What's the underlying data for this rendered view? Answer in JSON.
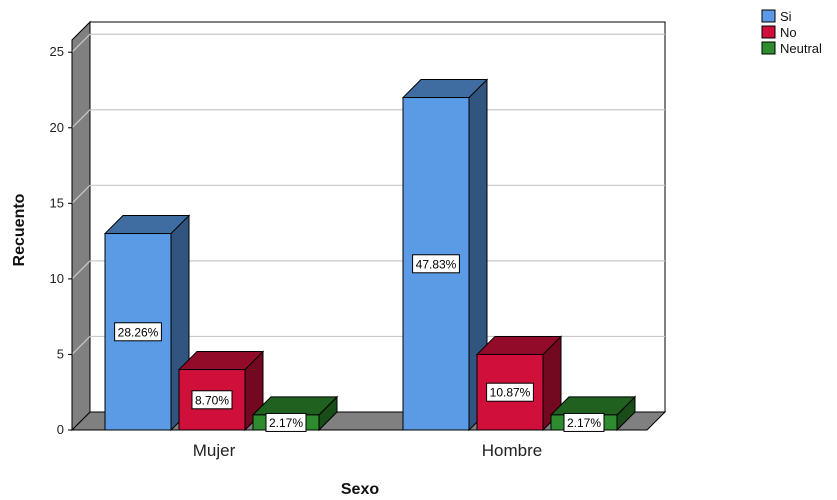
{
  "chart_data": {
    "type": "bar",
    "style": "3d-clustered",
    "xlabel": "Sexo",
    "ylabel": "Recuento",
    "ylim": [
      0,
      27
    ],
    "yticks": [
      0,
      5,
      10,
      15,
      20,
      25
    ],
    "grid": true,
    "legend_position": "top-right",
    "categories": [
      "Mujer",
      "Hombre"
    ],
    "series": [
      {
        "name": "Si",
        "color": "#5b9be6",
        "values": [
          13,
          22
        ],
        "labels": [
          "28.26%",
          "47.83%"
        ]
      },
      {
        "name": "No",
        "color": "#d0103a",
        "values": [
          4,
          5
        ],
        "labels": [
          "8.70%",
          "10.87%"
        ]
      },
      {
        "name": "Neutral",
        "color": "#2e8b2e",
        "values": [
          1,
          1
        ],
        "labels": [
          "2.17%",
          "2.17%"
        ]
      }
    ]
  }
}
